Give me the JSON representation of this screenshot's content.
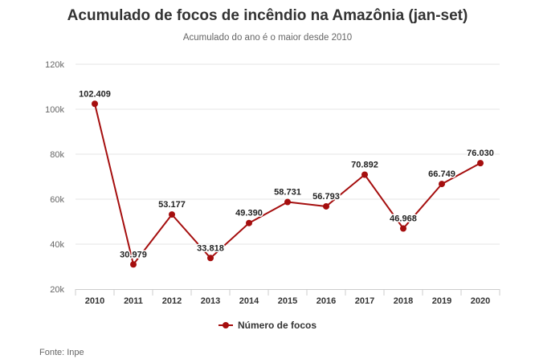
{
  "chart_data": {
    "type": "line",
    "title": "Acumulado de focos de incêndio na Amazônia (jan-set)",
    "subtitle": "Acumulado do ano é o maior desde 2010",
    "categories": [
      "2010",
      "2011",
      "2012",
      "2013",
      "2014",
      "2015",
      "2016",
      "2017",
      "2018",
      "2019",
      "2020"
    ],
    "series": [
      {
        "name": "Número de focos",
        "values": [
          102409,
          30979,
          53177,
          33818,
          49390,
          58731,
          56793,
          70892,
          46968,
          66749,
          76030
        ],
        "data_labels": [
          "102.409",
          "30.979",
          "53.177",
          "33.818",
          "49.390",
          "58.731",
          "56.793",
          "70.892",
          "46.968",
          "66.749",
          "76.030"
        ],
        "color": "#a50e0e"
      }
    ],
    "ylim": [
      20000,
      120000
    ],
    "yticks": [
      20000,
      40000,
      60000,
      80000,
      100000,
      120000
    ],
    "ytick_labels": [
      "20k",
      "40k",
      "60k",
      "80k",
      "100k",
      "120k"
    ],
    "grid": true,
    "legend_position": "bottom-center"
  },
  "source": "Fonte: Inpe"
}
